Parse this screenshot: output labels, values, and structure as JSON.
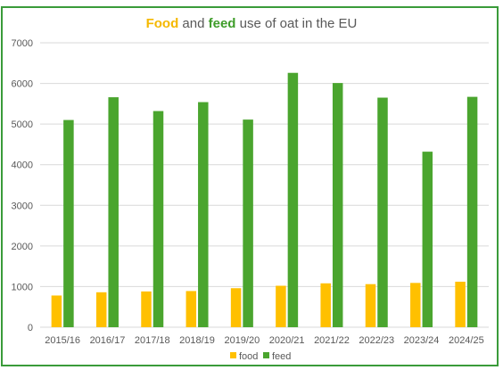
{
  "chart_data": {
    "type": "bar",
    "title_parts": [
      "Food",
      " and ",
      "feed",
      " use of oat in the EU"
    ],
    "categories": [
      "2015/16",
      "2016/17",
      "2017/18",
      "2018/19",
      "2019/20",
      "2020/21",
      "2021/22",
      "2022/23",
      "2023/24",
      "2024/25"
    ],
    "series": [
      {
        "name": "food",
        "color": "#ffc000",
        "values": [
          780,
          860,
          880,
          890,
          960,
          1020,
          1080,
          1060,
          1090,
          1120
        ]
      },
      {
        "name": "feed",
        "color": "#4aa52e",
        "values": [
          5100,
          5660,
          5320,
          5540,
          5110,
          6260,
          6010,
          5650,
          4320,
          5670
        ]
      }
    ],
    "ylim": [
      0,
      7000
    ],
    "yticks": [
      "0",
      "1000",
      "2000",
      "3000",
      "4000",
      "5000",
      "6000",
      "7000"
    ],
    "grid": true,
    "legend": "bottom",
    "frame_color": "#3a9b3a"
  }
}
